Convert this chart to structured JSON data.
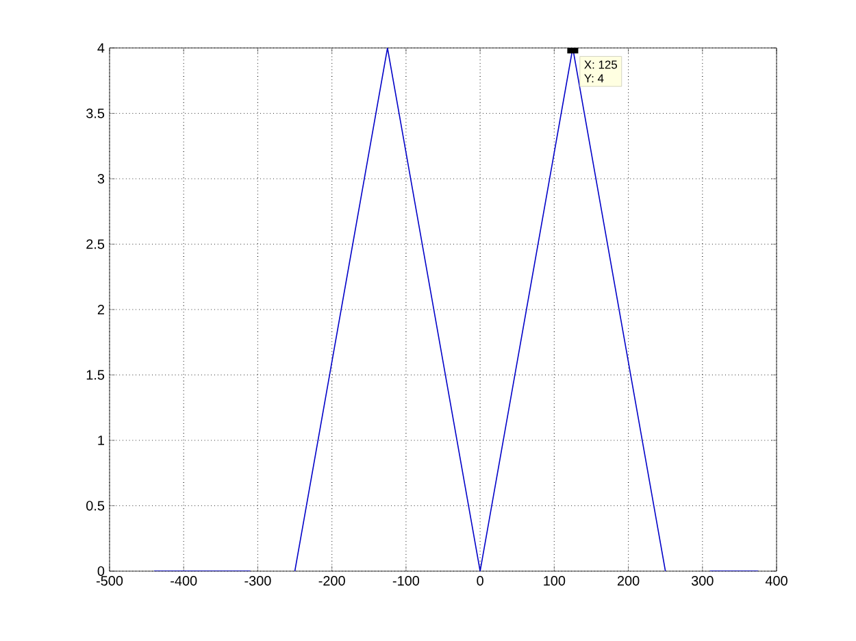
{
  "chart_data": {
    "type": "line",
    "series": [
      {
        "color": "#0000c8",
        "x": [
          -440,
          -310
        ],
        "values": [
          0,
          0
        ]
      },
      {
        "color": "#0000c8",
        "x": [
          -250,
          -125,
          0,
          125,
          250
        ],
        "values": [
          0,
          4,
          0,
          4,
          0
        ]
      },
      {
        "color": "#0000c8",
        "x": [
          310,
          375
        ],
        "values": [
          0,
          0
        ]
      }
    ],
    "xlim": [
      -500,
      400
    ],
    "xticks": [
      -500,
      -400,
      -300,
      -200,
      -100,
      0,
      100,
      200,
      300,
      400
    ],
    "ylim": [
      0,
      4
    ],
    "yticks": [
      0,
      0.5,
      1,
      1.5,
      2,
      2.5,
      3,
      3.5,
      4
    ],
    "grid": true,
    "line_style": "solid",
    "annotations": [
      {
        "text": "X: 125",
        "x": 125,
        "y": 4
      },
      "Y: 4"
    ]
  }
}
